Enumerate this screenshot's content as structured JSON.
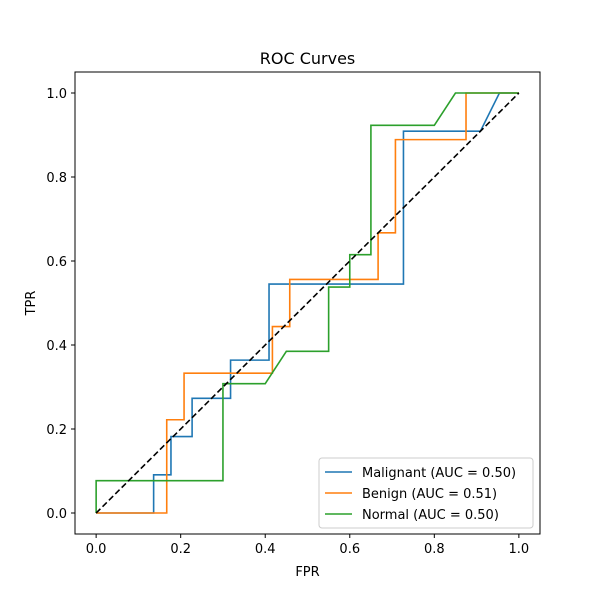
{
  "chart_data": {
    "type": "line",
    "title": "ROC Curves",
    "xlabel": "FPR",
    "ylabel": "TPR",
    "xlim": [
      -0.05,
      1.05
    ],
    "ylim": [
      -0.05,
      1.05
    ],
    "xticks": [
      "0.0",
      "0.2",
      "0.4",
      "0.6",
      "0.8",
      "1.0"
    ],
    "yticks": [
      "0.0",
      "0.2",
      "0.4",
      "0.6",
      "0.8",
      "1.0"
    ],
    "grid": false,
    "legend_position": "lower-right",
    "diagonal": {
      "x": [
        0,
        1
      ],
      "y": [
        0,
        1
      ],
      "color": "#000000",
      "style": "dashed"
    },
    "series": [
      {
        "name": "Malignant (AUC = 0.50)",
        "color": "#1f77b4",
        "x": [
          0.0,
          0.136,
          0.136,
          0.177,
          0.177,
          0.227,
          0.227,
          0.318,
          0.318,
          0.409,
          0.409,
          0.727,
          0.727,
          0.909,
          0.954,
          1.0
        ],
        "y": [
          0.0,
          0.0,
          0.091,
          0.091,
          0.182,
          0.182,
          0.273,
          0.273,
          0.364,
          0.364,
          0.545,
          0.545,
          0.909,
          0.909,
          1.0,
          1.0
        ]
      },
      {
        "name": "Benign (AUC = 0.51)",
        "color": "#ff7f0e",
        "x": [
          0.0,
          0.167,
          0.167,
          0.208,
          0.208,
          0.417,
          0.417,
          0.458,
          0.458,
          0.667,
          0.667,
          0.708,
          0.708,
          0.875,
          0.875,
          1.0
        ],
        "y": [
          0.0,
          0.0,
          0.222,
          0.222,
          0.333,
          0.333,
          0.444,
          0.444,
          0.556,
          0.556,
          0.667,
          0.667,
          0.889,
          0.889,
          1.0,
          1.0
        ]
      },
      {
        "name": "Normal (AUC = 0.50)",
        "color": "#2ca02c",
        "x": [
          0.0,
          0.0,
          0.3,
          0.3,
          0.4,
          0.45,
          0.55,
          0.55,
          0.6,
          0.6,
          0.65,
          0.65,
          0.8,
          0.85,
          1.0
        ],
        "y": [
          0.0,
          0.077,
          0.077,
          0.308,
          0.308,
          0.385,
          0.385,
          0.538,
          0.538,
          0.615,
          0.615,
          0.923,
          0.923,
          1.0,
          1.0
        ]
      }
    ]
  }
}
